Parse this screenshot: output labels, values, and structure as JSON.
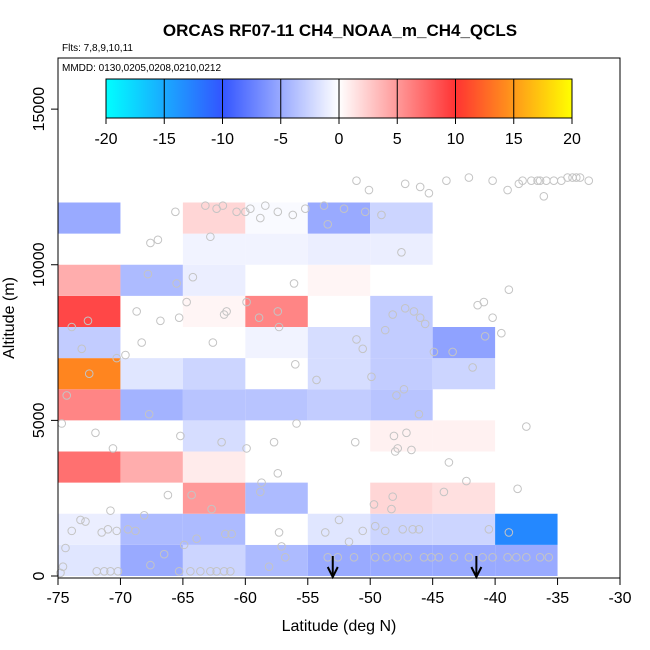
{
  "chart_data": {
    "type": "heatmap",
    "title": "ORCAS RF07-11 CH4_NOAA_m_CH4_QCLS",
    "flights_note": "Flts: 7,8,9,10,11",
    "dates_note": "MMDD: 0130,0205,0208,0210,0212",
    "xlabel": "Latitude (deg N)",
    "ylabel": "Altitude (m)",
    "xlim": [
      -75,
      -30
    ],
    "ylim": [
      0,
      16000
    ],
    "x_ticks": [
      -75,
      -70,
      -65,
      -60,
      -55,
      -50,
      -45,
      -40,
      -35,
      -30
    ],
    "x_tick_labels": [
      "-75",
      "-70",
      "-65",
      "-60",
      "-55",
      "-50",
      "-45",
      "-40",
      "-35",
      "-30"
    ],
    "y_ticks": [
      0,
      5000,
      10000,
      15000
    ],
    "y_tick_labels": [
      "0",
      "5000",
      "10000",
      "15000"
    ],
    "colorbar": {
      "min": -20,
      "max": 20,
      "ticks": [
        -20,
        -15,
        -10,
        -5,
        0,
        5,
        10,
        15,
        20
      ],
      "tick_labels": [
        "-20",
        "-15",
        "-10",
        "-5",
        "0",
        "5",
        "10",
        "15",
        "20"
      ],
      "colors_negative": [
        "#00ffff",
        "#3355ff",
        "#ffffff"
      ],
      "colors_positive": [
        "#ffffff",
        "#ff3333",
        "#ffff00"
      ]
    },
    "cell_width_deg": 5,
    "cell_height_m": 1000,
    "cells": [
      {
        "lat": -75,
        "alt": 0,
        "value": -1.5
      },
      {
        "lat": -70,
        "alt": 0,
        "value": -5
      },
      {
        "lat": -65,
        "alt": 0,
        "value": -2.5
      },
      {
        "lat": -60,
        "alt": 0,
        "value": -4
      },
      {
        "lat": -55,
        "alt": 0,
        "value": -5
      },
      {
        "lat": -50,
        "alt": 0,
        "value": -5
      },
      {
        "lat": -45,
        "alt": 0,
        "value": -5
      },
      {
        "lat": -40,
        "alt": 0,
        "value": -5
      },
      {
        "lat": -75,
        "alt": 1000,
        "value": -1
      },
      {
        "lat": -70,
        "alt": 1000,
        "value": -4
      },
      {
        "lat": -65,
        "alt": 1000,
        "value": -4
      },
      {
        "lat": -60,
        "alt": 1000,
        "value": 0
      },
      {
        "lat": -55,
        "alt": 1000,
        "value": -1.5
      },
      {
        "lat": -50,
        "alt": 1000,
        "value": -2.5
      },
      {
        "lat": -45,
        "alt": 1000,
        "value": -2.5
      },
      {
        "lat": -40,
        "alt": 1000,
        "value": -13
      },
      {
        "lat": -65,
        "alt": 2000,
        "value": 5
      },
      {
        "lat": -60,
        "alt": 2000,
        "value": -4
      },
      {
        "lat": -50,
        "alt": 2000,
        "value": 2
      },
      {
        "lat": -45,
        "alt": 2000,
        "value": 1.5
      },
      {
        "lat": -75,
        "alt": 3000,
        "value": 7
      },
      {
        "lat": -70,
        "alt": 3000,
        "value": 4
      },
      {
        "lat": -65,
        "alt": 3000,
        "value": 1
      },
      {
        "lat": -65,
        "alt": 4000,
        "value": -2
      },
      {
        "lat": -50,
        "alt": 4000,
        "value": 0.7
      },
      {
        "lat": -45,
        "alt": 4000,
        "value": 0.7
      },
      {
        "lat": -75,
        "alt": 5000,
        "value": 6
      },
      {
        "lat": -70,
        "alt": 5000,
        "value": -4.5
      },
      {
        "lat": -65,
        "alt": 5000,
        "value": -3.5
      },
      {
        "lat": -60,
        "alt": 5000,
        "value": -3.5
      },
      {
        "lat": -55,
        "alt": 5000,
        "value": -3
      },
      {
        "lat": -50,
        "alt": 5000,
        "value": -3.5
      },
      {
        "lat": -75,
        "alt": 6000,
        "value": 14
      },
      {
        "lat": -70,
        "alt": 6000,
        "value": -1.5
      },
      {
        "lat": -65,
        "alt": 6000,
        "value": -2.5
      },
      {
        "lat": -55,
        "alt": 6000,
        "value": -2
      },
      {
        "lat": -50,
        "alt": 6000,
        "value": -3
      },
      {
        "lat": -45,
        "alt": 6000,
        "value": -2.5
      },
      {
        "lat": -75,
        "alt": 7000,
        "value": -3
      },
      {
        "lat": -60,
        "alt": 7000,
        "value": -0.7
      },
      {
        "lat": -55,
        "alt": 7000,
        "value": -2
      },
      {
        "lat": -50,
        "alt": 7000,
        "value": -3
      },
      {
        "lat": -45,
        "alt": 7000,
        "value": -5.5
      },
      {
        "lat": -75,
        "alt": 8000,
        "value": 9
      },
      {
        "lat": -70,
        "alt": 8000,
        "value": 0
      },
      {
        "lat": -65,
        "alt": 8000,
        "value": 0.5
      },
      {
        "lat": -60,
        "alt": 8000,
        "value": 6
      },
      {
        "lat": -50,
        "alt": 8000,
        "value": -3
      },
      {
        "lat": -75,
        "alt": 9000,
        "value": 4
      },
      {
        "lat": -70,
        "alt": 9000,
        "value": -4
      },
      {
        "lat": -65,
        "alt": 9000,
        "value": -1
      },
      {
        "lat": -55,
        "alt": 9000,
        "value": 0.5
      },
      {
        "lat": -65,
        "alt": 10000,
        "value": -0.7
      },
      {
        "lat": -60,
        "alt": 10000,
        "value": -0.7
      },
      {
        "lat": -55,
        "alt": 10000,
        "value": -1
      },
      {
        "lat": -50,
        "alt": 10000,
        "value": -1
      },
      {
        "lat": -75,
        "alt": 11000,
        "value": -5
      },
      {
        "lat": -65,
        "alt": 11000,
        "value": 2
      },
      {
        "lat": -60,
        "alt": 11000,
        "value": -0.3
      },
      {
        "lat": -55,
        "alt": 11000,
        "value": -5
      },
      {
        "lat": -50,
        "alt": 11000,
        "value": -2.5
      }
    ],
    "observation_points": [
      [
        -74.8,
        100
      ],
      [
        -74.6,
        300
      ],
      [
        -74.4,
        900
      ],
      [
        -73.9,
        1450
      ],
      [
        -73.2,
        1800
      ],
      [
        -72.8,
        1750
      ],
      [
        -71.5,
        1400
      ],
      [
        -71,
        1500
      ],
      [
        -70.8,
        2100
      ],
      [
        -70.3,
        1450
      ],
      [
        -71.9,
        150
      ],
      [
        -71.3,
        150
      ],
      [
        -70.8,
        150
      ],
      [
        -70.2,
        150
      ],
      [
        -69.4,
        1500
      ],
      [
        -68.8,
        1450
      ],
      [
        -68.1,
        1950
      ],
      [
        -67.6,
        350
      ],
      [
        -66.5,
        700
      ],
      [
        -65.3,
        150
      ],
      [
        -64.4,
        150
      ],
      [
        -63.6,
        150
      ],
      [
        -62.8,
        150
      ],
      [
        -62.3,
        150
      ],
      [
        -61.7,
        150
      ],
      [
        -61.2,
        150
      ],
      [
        -64.9,
        1000
      ],
      [
        -63.9,
        1200
      ],
      [
        -61.6,
        1350
      ],
      [
        -61.1,
        1350
      ],
      [
        -62.7,
        2150
      ],
      [
        -64.3,
        2600
      ],
      [
        -58.8,
        2700
      ],
      [
        -58.1,
        300
      ],
      [
        -57.3,
        1400
      ],
      [
        -57.1,
        950
      ],
      [
        -56.8,
        600
      ],
      [
        -53.4,
        600
      ],
      [
        -52.6,
        600
      ],
      [
        -51.3,
        600
      ],
      [
        -49.6,
        600
      ],
      [
        -48.7,
        600
      ],
      [
        -47.8,
        600
      ],
      [
        -47,
        600
      ],
      [
        -45.7,
        600
      ],
      [
        -45.1,
        600
      ],
      [
        -44.5,
        600
      ],
      [
        -43.3,
        600
      ],
      [
        -42.1,
        600
      ],
      [
        -41,
        600
      ],
      [
        -40.2,
        600
      ],
      [
        -39,
        600
      ],
      [
        -38.3,
        600
      ],
      [
        -37.5,
        600
      ],
      [
        -36.4,
        600
      ],
      [
        -35.7,
        600
      ],
      [
        -53.6,
        1400
      ],
      [
        -52.5,
        1800
      ],
      [
        -51.7,
        1100
      ],
      [
        -50.6,
        1450
      ],
      [
        -49.6,
        1600
      ],
      [
        -48.8,
        1450
      ],
      [
        -48.3,
        2150
      ],
      [
        -47.4,
        1500
      ],
      [
        -46.6,
        1500
      ],
      [
        -46.1,
        1500
      ],
      [
        -49.7,
        2300
      ],
      [
        -48.2,
        2550
      ],
      [
        -44.1,
        2700
      ],
      [
        -42.3,
        3050
      ],
      [
        -40.5,
        1500
      ],
      [
        -38.9,
        1400
      ],
      [
        -38.2,
        2800
      ],
      [
        -37.5,
        4800
      ],
      [
        -43.7,
        3650
      ],
      [
        -46.7,
        4050
      ],
      [
        -47.1,
        4600
      ],
      [
        -48.1,
        4500
      ],
      [
        -48,
        4000
      ],
      [
        -47.8,
        4100
      ],
      [
        -51.2,
        4300
      ],
      [
        -55.9,
        4900
      ],
      [
        -57.7,
        4300
      ],
      [
        -59.9,
        4100
      ],
      [
        -57.4,
        3300
      ],
      [
        -58.7,
        3000
      ],
      [
        -61.9,
        4300
      ],
      [
        -67.7,
        5200
      ],
      [
        -66.2,
        2600
      ],
      [
        -65.2,
        4500
      ],
      [
        -70.6,
        4100
      ],
      [
        -72,
        4600
      ],
      [
        -74.7,
        4900
      ],
      [
        -74.3,
        5800
      ],
      [
        -72.5,
        6500
      ],
      [
        -73.1,
        7300
      ],
      [
        -70.3,
        7000
      ],
      [
        -69.6,
        7100
      ],
      [
        -68.3,
        7500
      ],
      [
        -66.8,
        8200
      ],
      [
        -65.3,
        8300
      ],
      [
        -62.6,
        7500
      ],
      [
        -61.5,
        8500
      ],
      [
        -59.9,
        8800
      ],
      [
        -58.9,
        8300
      ],
      [
        -57.3,
        8000
      ],
      [
        -56,
        6800
      ],
      [
        -54.3,
        6300
      ],
      [
        -51.1,
        7600
      ],
      [
        -50.6,
        7300
      ],
      [
        -49.9,
        6400
      ],
      [
        -48.8,
        7900
      ],
      [
        -48.2,
        8400
      ],
      [
        -47.2,
        8600
      ],
      [
        -46.5,
        8500
      ],
      [
        -45.6,
        8100
      ],
      [
        -46,
        8300
      ],
      [
        -47.3,
        6000
      ],
      [
        -47.9,
        5800
      ],
      [
        -46.1,
        5200
      ],
      [
        -44.9,
        7200
      ],
      [
        -43.4,
        7200
      ],
      [
        -41.8,
        6700
      ],
      [
        -40.8,
        7700
      ],
      [
        -41.4,
        8700
      ],
      [
        -40.9,
        8800
      ],
      [
        -40.2,
        8300
      ],
      [
        -38.9,
        9200
      ],
      [
        -39.5,
        7800
      ],
      [
        -73.9,
        8000
      ],
      [
        -72.6,
        8200
      ],
      [
        -68.7,
        8500
      ],
      [
        -67.8,
        9700
      ],
      [
        -65.5,
        9400
      ],
      [
        -64.7,
        8800
      ],
      [
        -64.2,
        9600
      ],
      [
        -61.7,
        8400
      ],
      [
        -57.4,
        8500
      ],
      [
        -56.1,
        9400
      ],
      [
        -53.4,
        11300
      ],
      [
        -52.1,
        11800
      ],
      [
        -50.1,
        12400
      ],
      [
        -50.4,
        11700
      ],
      [
        -51.1,
        12700
      ],
      [
        -49.1,
        11600
      ],
      [
        -47.5,
        10400
      ],
      [
        -47.2,
        12600
      ],
      [
        -46,
        12500
      ],
      [
        -45.3,
        12300
      ],
      [
        -43.9,
        12700
      ],
      [
        -42.1,
        12800
      ],
      [
        -40.2,
        12700
      ],
      [
        -39,
        12400
      ],
      [
        -37.8,
        12700
      ],
      [
        -36.6,
        12700
      ],
      [
        -35.9,
        12700
      ],
      [
        -35.3,
        12700
      ],
      [
        -34.7,
        12700
      ],
      [
        -34.2,
        12800
      ],
      [
        -33.8,
        12800
      ],
      [
        -33.2,
        12800
      ],
      [
        -32.5,
        12700
      ],
      [
        -36.1,
        12200
      ],
      [
        -38.1,
        12600
      ],
      [
        -37.1,
        12700
      ],
      [
        -36.4,
        12700
      ],
      [
        -33.5,
        12800
      ],
      [
        -63.2,
        11900
      ],
      [
        -62.3,
        11800
      ],
      [
        -61.8,
        11900
      ],
      [
        -60.7,
        11700
      ],
      [
        -59.6,
        11800
      ],
      [
        -58.8,
        11500
      ],
      [
        -56.2,
        11600
      ],
      [
        -55.2,
        11800
      ],
      [
        -53.7,
        11900
      ],
      [
        -57.4,
        11700
      ],
      [
        -58.4,
        11900
      ],
      [
        -60,
        11700
      ],
      [
        -62.8,
        10900
      ],
      [
        -65.6,
        11700
      ],
      [
        -67,
        10800
      ],
      [
        -67.6,
        10700
      ]
    ],
    "arrows": [
      {
        "lat": -53,
        "label": "down-arrow"
      },
      {
        "lat": -41.5,
        "label": "down-arrow"
      }
    ]
  }
}
